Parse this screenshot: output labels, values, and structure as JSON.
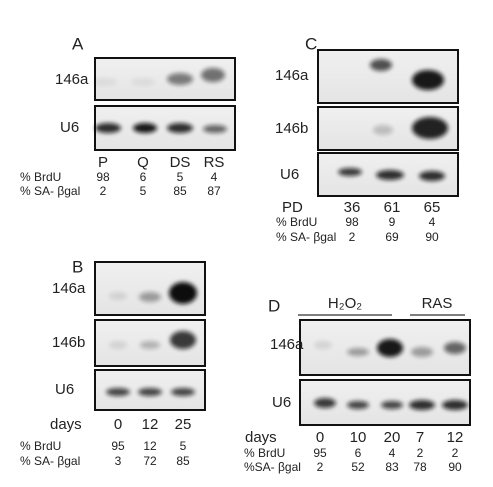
{
  "panels": [
    {
      "label": "A",
      "blots": [
        "146a",
        "U6"
      ],
      "columns": [
        "P",
        "Q",
        "DS",
        "RS"
      ],
      "rows": [
        {
          "label": "% BrdU",
          "values": [
            98,
            6,
            5,
            4
          ]
        },
        {
          "label": "% SA- βgal",
          "values": [
            2,
            5,
            85,
            87
          ]
        }
      ]
    },
    {
      "label": "C",
      "blots": [
        "146a",
        "146b",
        "U6"
      ],
      "rows": [
        {
          "label": "PD",
          "values": [
            36,
            61,
            65
          ]
        },
        {
          "label": "% BrdU",
          "values": [
            98,
            9,
            4
          ]
        },
        {
          "label": "% SA- βgal",
          "values": [
            2,
            69,
            90
          ]
        }
      ]
    },
    {
      "label": "B",
      "blots": [
        "146a",
        "146b",
        "U6"
      ],
      "rows": [
        {
          "label": "days",
          "values": [
            0,
            12,
            25
          ]
        },
        {
          "label": "% BrdU",
          "values": [
            95,
            12,
            5
          ]
        },
        {
          "label": "% SA- βgal",
          "values": [
            3,
            72,
            85
          ]
        }
      ]
    },
    {
      "label": "D",
      "groups": [
        "H₂O₂",
        "RAS"
      ],
      "blots": [
        "146a",
        "U6"
      ],
      "rows": [
        {
          "label": "days",
          "values": [
            0,
            10,
            20,
            7,
            12
          ]
        },
        {
          "label": "% BrdU",
          "values": [
            95,
            6,
            4,
            2,
            2
          ]
        },
        {
          "label": "%SA- βgal",
          "values": [
            2,
            52,
            83,
            78,
            90
          ]
        }
      ]
    }
  ]
}
